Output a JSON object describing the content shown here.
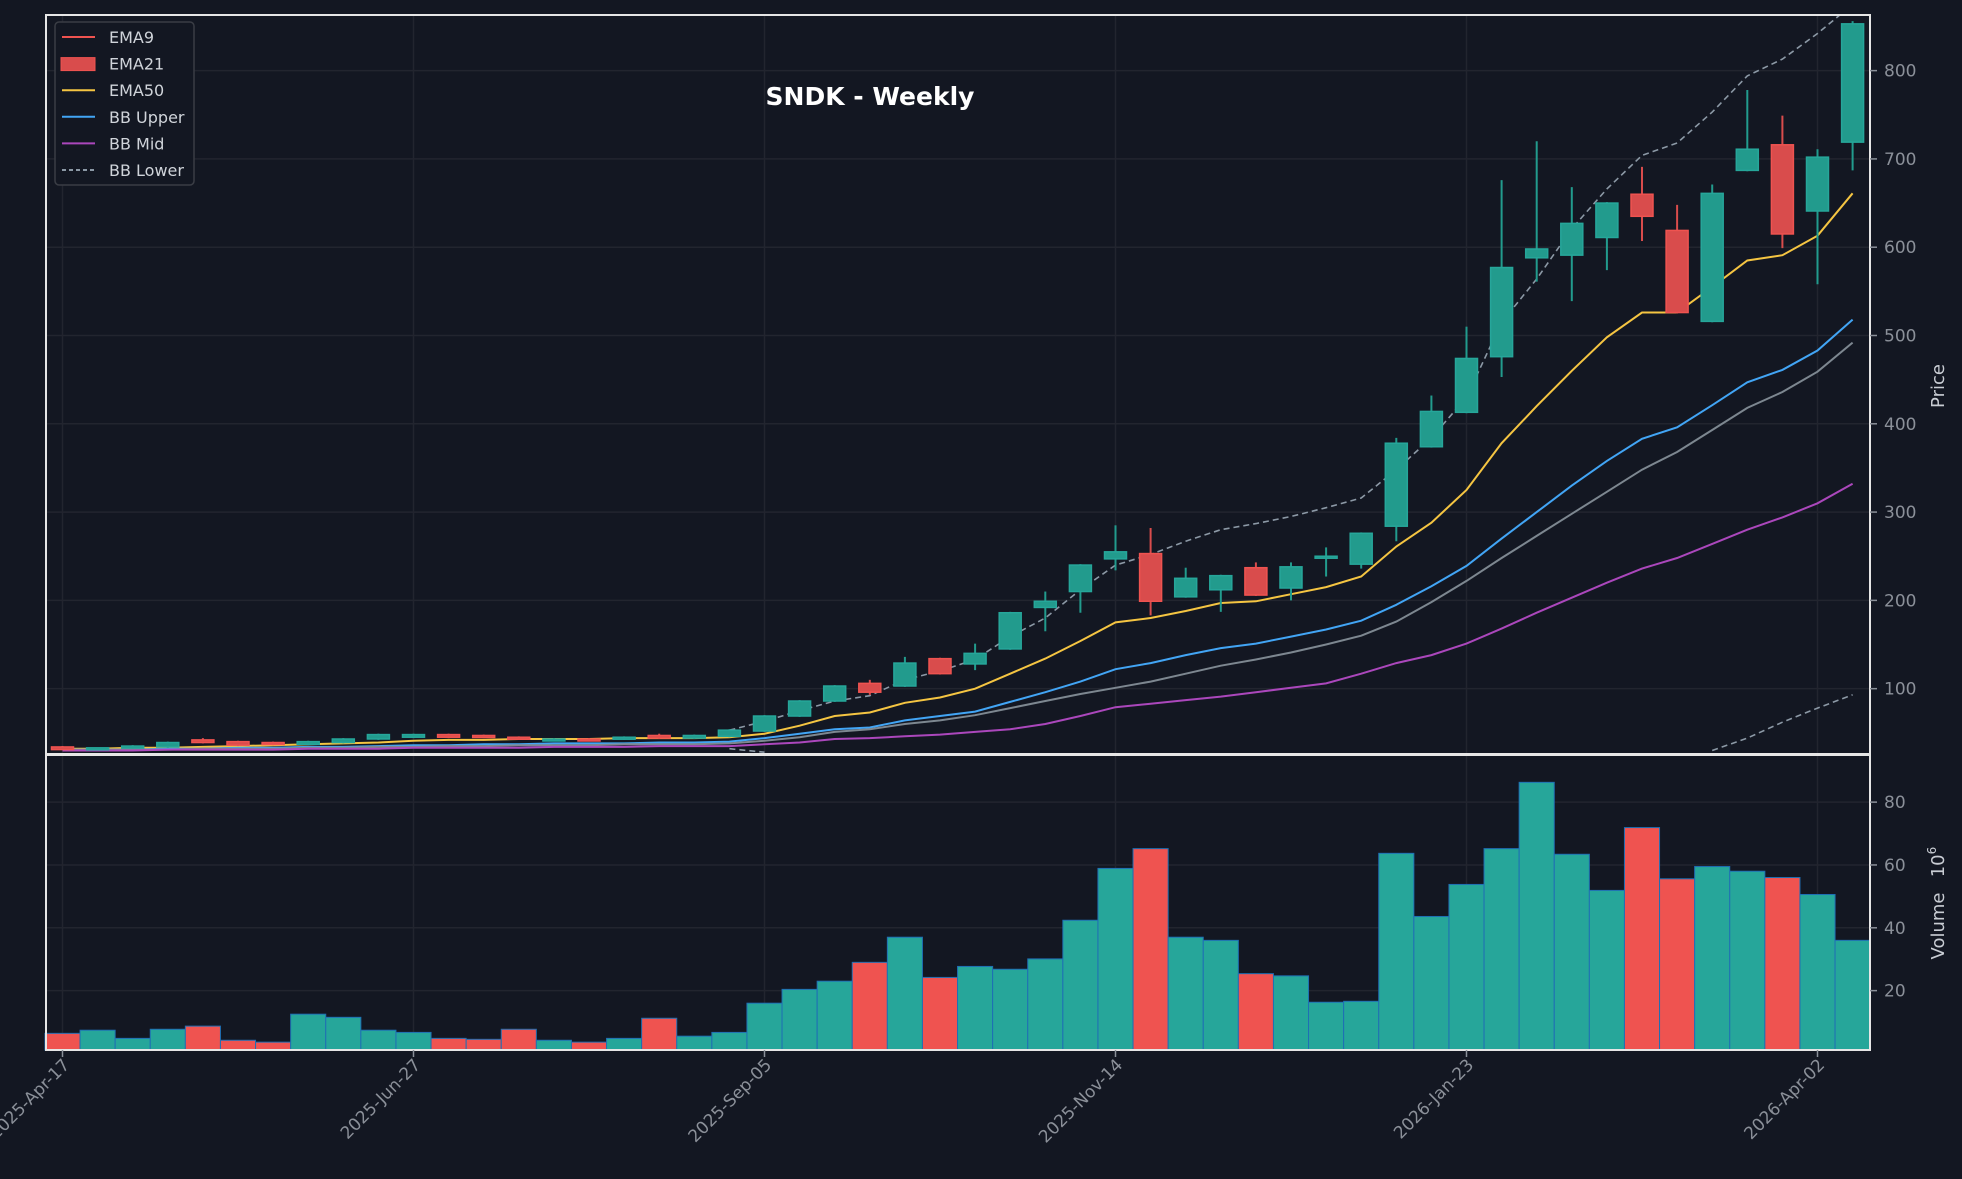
{
  "chart_data": [
    {
      "type": "candlestick",
      "title": "SNDK - Weekly",
      "ylabel": "Price",
      "ylim": [
        26,
        863
      ],
      "yticks": [
        100,
        200,
        300,
        400,
        500,
        600,
        700,
        800
      ],
      "xticks": [
        {
          "index": 0,
          "label": "2025-Apr-17"
        },
        {
          "index": 10,
          "label": "2025-Jun-27"
        },
        {
          "index": 20,
          "label": "2025-Sep-05"
        },
        {
          "index": 30,
          "label": "2025-Nov-14"
        },
        {
          "index": 40,
          "label": "2026-Jan-23"
        },
        {
          "index": 50,
          "label": "2026-Apr-02"
        }
      ],
      "grid": true,
      "legend_placement": "top-left",
      "legend": [
        {
          "label": "EMA9",
          "style": "line",
          "color": "#ef5350"
        },
        {
          "label": "EMA21",
          "style": "patch",
          "color": "#d94c4c"
        },
        {
          "label": "EMA50",
          "style": "line",
          "color": "#f5c542"
        },
        {
          "label": "BB Upper",
          "style": "line",
          "color": "#42a5f5"
        },
        {
          "label": "BB Mid",
          "style": "line",
          "color": "#ab47bc"
        },
        {
          "label": "BB Lower",
          "style": "dashed",
          "color": "#8c99a6"
        }
      ],
      "colors": {
        "up": "#229b8d",
        "down": "#d94c4c",
        "background": "#131722",
        "grid": "#22252f"
      },
      "ohlc": [
        [
          34,
          35,
          31,
          31
        ],
        [
          32,
          33,
          31,
          33
        ],
        [
          33,
          36,
          32,
          35
        ],
        [
          34,
          40,
          33,
          39
        ],
        [
          42,
          44,
          38,
          39
        ],
        [
          40,
          41,
          35,
          36
        ],
        [
          39,
          40,
          36,
          37
        ],
        [
          37,
          41,
          36,
          40
        ],
        [
          39,
          44,
          38,
          43
        ],
        [
          43,
          49,
          42,
          48
        ],
        [
          45,
          49,
          44,
          48
        ],
        [
          48,
          49,
          44,
          45
        ],
        [
          47,
          48,
          44,
          45
        ],
        [
          45,
          46,
          42,
          43
        ],
        [
          42,
          44,
          41,
          43
        ],
        [
          43,
          44,
          41,
          42
        ],
        [
          43,
          46,
          42,
          45
        ],
        [
          47,
          49,
          43,
          44
        ],
        [
          44,
          48,
          43,
          47
        ],
        [
          46,
          54,
          45,
          53
        ],
        [
          52,
          70,
          51,
          69
        ],
        [
          69,
          87,
          68,
          86
        ],
        [
          86,
          104,
          85,
          103
        ],
        [
          106,
          110,
          93,
          96
        ],
        [
          103,
          136,
          102,
          129
        ],
        [
          134,
          135,
          116,
          117
        ],
        [
          128,
          151,
          121,
          140
        ],
        [
          145,
          187,
          144,
          186
        ],
        [
          192,
          210,
          165,
          199
        ],
        [
          210,
          241,
          186,
          240
        ],
        [
          247,
          285,
          234,
          255
        ],
        [
          253,
          282,
          183,
          199
        ],
        [
          204,
          237,
          203,
          225
        ],
        [
          212,
          229,
          187,
          228
        ],
        [
          237,
          243,
          205,
          206
        ],
        [
          214,
          243,
          200,
          238
        ],
        [
          249,
          260,
          227,
          250
        ],
        [
          241,
          277,
          236,
          276
        ],
        [
          284,
          384,
          267,
          378
        ],
        [
          374,
          432,
          373,
          414
        ],
        [
          413,
          510,
          412,
          474
        ],
        [
          476,
          676,
          453,
          577
        ],
        [
          588,
          720,
          561,
          598
        ],
        [
          591,
          668,
          539,
          627
        ],
        [
          611,
          651,
          574,
          650
        ],
        [
          660,
          691,
          607,
          635
        ],
        [
          619,
          648,
          525,
          526
        ],
        [
          516,
          671,
          515,
          661
        ],
        [
          687,
          778,
          686,
          711
        ],
        [
          716,
          749,
          599,
          615
        ],
        [
          641,
          711,
          558,
          702
        ],
        [
          719,
          856,
          687,
          853
        ]
      ],
      "lines": [
        {
          "color": "#f5c542",
          "style": "solid",
          "values": [
            32,
            32,
            33,
            33,
            34,
            35,
            36,
            37,
            38,
            39,
            41,
            42,
            42,
            43,
            43,
            43,
            44,
            44,
            44,
            45,
            49,
            58,
            69,
            73,
            84,
            90,
            100,
            117,
            134,
            154,
            175,
            180,
            188,
            197,
            199,
            207,
            215,
            227,
            261,
            288,
            325,
            378,
            420,
            460,
            498,
            526,
            526,
            555,
            585,
            591,
            613,
            661
          ]
        },
        {
          "color": "#42a5f5",
          "style": "solid",
          "values": [
            31,
            31,
            31,
            32,
            32,
            33,
            33,
            34,
            34,
            35,
            36,
            36,
            37,
            37,
            38,
            38,
            38,
            39,
            39,
            40,
            44,
            49,
            54,
            56,
            64,
            69,
            74,
            85,
            96,
            108,
            122,
            129,
            138,
            146,
            151,
            159,
            167,
            177,
            195,
            216,
            239,
            270,
            300,
            330,
            358,
            383,
            396,
            421,
            447,
            461,
            483,
            518
          ]
        },
        {
          "color": "#7d8790",
          "style": "solid",
          "values": [
            31,
            31,
            31,
            31,
            32,
            32,
            32,
            33,
            33,
            34,
            34,
            35,
            35,
            36,
            36,
            36,
            37,
            37,
            37,
            38,
            41,
            45,
            51,
            54,
            60,
            64,
            70,
            78,
            86,
            94,
            101,
            108,
            117,
            126,
            133,
            141,
            150,
            160,
            176,
            198,
            222,
            248,
            273,
            298,
            323,
            348,
            368,
            393,
            418,
            436,
            459,
            492
          ]
        },
        {
          "color": "#ab47bc",
          "style": "solid",
          "values": [
            30,
            30,
            30,
            31,
            31,
            31,
            31,
            32,
            32,
            32,
            33,
            33,
            33,
            33,
            34,
            34,
            34,
            35,
            35,
            35,
            37,
            39,
            43,
            44,
            46,
            48,
            51,
            54,
            60,
            69,
            79,
            83,
            87,
            91,
            96,
            101,
            106,
            117,
            129,
            138,
            151,
            168,
            186,
            203,
            220,
            236,
            248,
            264,
            280,
            294,
            310,
            332
          ]
        },
        {
          "color": "#8c99a6",
          "style": "dashed",
          "values": [
            null,
            null,
            null,
            null,
            null,
            null,
            null,
            null,
            null,
            null,
            null,
            null,
            null,
            null,
            null,
            null,
            null,
            null,
            null,
            53,
            63,
            75,
            86,
            92,
            110,
            120,
            133,
            159,
            180,
            212,
            240,
            252,
            267,
            280,
            287,
            295,
            305,
            316,
            348,
            384,
            430,
            515,
            564,
            621,
            666,
            704,
            718,
            753,
            794,
            813,
            842,
            875
          ]
        },
        {
          "color": "#8c99a6",
          "style": "dashed",
          "values": [
            null,
            null,
            null,
            null,
            null,
            null,
            null,
            null,
            null,
            null,
            null,
            null,
            null,
            null,
            null,
            null,
            null,
            null,
            null,
            32,
            28,
            null,
            null,
            null,
            null,
            null,
            null,
            null,
            null,
            null,
            null,
            null,
            null,
            null,
            null,
            null,
            null,
            null,
            null,
            null,
            null,
            null,
            null,
            null,
            null,
            null,
            null,
            30,
            44,
            62,
            78,
            93
          ]
        }
      ]
    },
    {
      "type": "bar",
      "ylabel": "Volume",
      "yunit": "10",
      "yunit_exp": "6",
      "ylim": [
        1.1,
        95
      ],
      "yticks": [
        20,
        40,
        60,
        80
      ],
      "colors": {
        "up": "#26a69a",
        "down": "#ef5350",
        "edge": "#1f6fb4"
      },
      "values": [
        6.4,
        7.4,
        4.8,
        7.7,
        8.7,
        4.2,
        3.6,
        12.5,
        11.5,
        7.4,
        6.7,
        4.8,
        4.5,
        7.7,
        4.2,
        3.6,
        4.8,
        11.2,
        5.5,
        6.7,
        16.0,
        20.4,
        23.0,
        29.0,
        37.0,
        24.2,
        27.7,
        26.8,
        30.1,
        42.4,
        58.9,
        65.2,
        37.0,
        36.0,
        25.4,
        24.7,
        16.3,
        16.6,
        63.7,
        43.6,
        53.8,
        65.2,
        86.3,
        63.4,
        51.9,
        71.9,
        55.6,
        59.5,
        58.0,
        56.0,
        50.6,
        36.0
      ]
    }
  ]
}
